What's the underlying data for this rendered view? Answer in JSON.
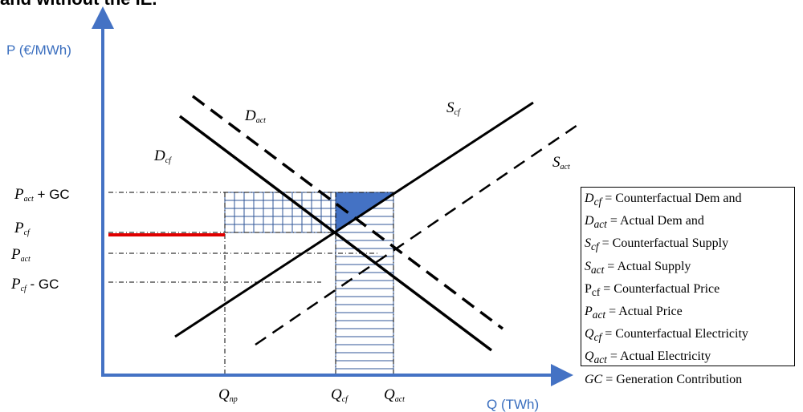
{
  "heading_fragment": "and without the IE.",
  "axes": {
    "y_label": "P  (€/MWh)",
    "x_label": "Q  (TWh)"
  },
  "price_labels": [
    {
      "main": "P",
      "sub": "act",
      "suffix": " + GC"
    },
    {
      "main": "P",
      "sub": "cf",
      "suffix": ""
    },
    {
      "main": "P",
      "sub": "act",
      "suffix": ""
    },
    {
      "main": "P",
      "sub": "cf",
      "suffix": " - GC"
    }
  ],
  "quantity_labels": [
    {
      "main": "Q",
      "sub": "np"
    },
    {
      "main": "Q",
      "sub": "cf"
    },
    {
      "main": "Q",
      "sub": "act"
    }
  ],
  "curve_labels": {
    "d_cf": {
      "main": "D",
      "sub": "cf"
    },
    "d_act": {
      "main": "D",
      "sub": "act"
    },
    "s_cf": {
      "main": "S",
      "sub": "cf"
    },
    "s_act": {
      "main": "S",
      "sub": "act"
    }
  },
  "legend": [
    {
      "sym": "D",
      "sub": "cf",
      "text": " = Counterfactual Dem and"
    },
    {
      "sym": "D",
      "sub": "act",
      "text": " = Actual Dem and"
    },
    {
      "sym": "S",
      "sub": "cf",
      "text": " = Counterfactual Supply"
    },
    {
      "sym": "S",
      "sub": "act",
      "text": " = Actual Supply"
    },
    {
      "sym": "P",
      "sub": "cf",
      "text": " = Counterfactual Price"
    },
    {
      "sym": "P",
      "sub": "act",
      "text": " = Actual Price"
    },
    {
      "sym": "Q",
      "sub": "cf",
      "text": " = Counterfactual Electricity"
    },
    {
      "sym": "Q",
      "sub": "act",
      "text": " = Actual Electricity"
    },
    {
      "sym": "GC",
      "sub": "",
      "text": " = Generation Contribution"
    }
  ],
  "colors": {
    "axis": "#4472c4",
    "red_line": "#e00000",
    "fill_triangle": "#4472c4",
    "hatch": "#2f5597"
  }
}
